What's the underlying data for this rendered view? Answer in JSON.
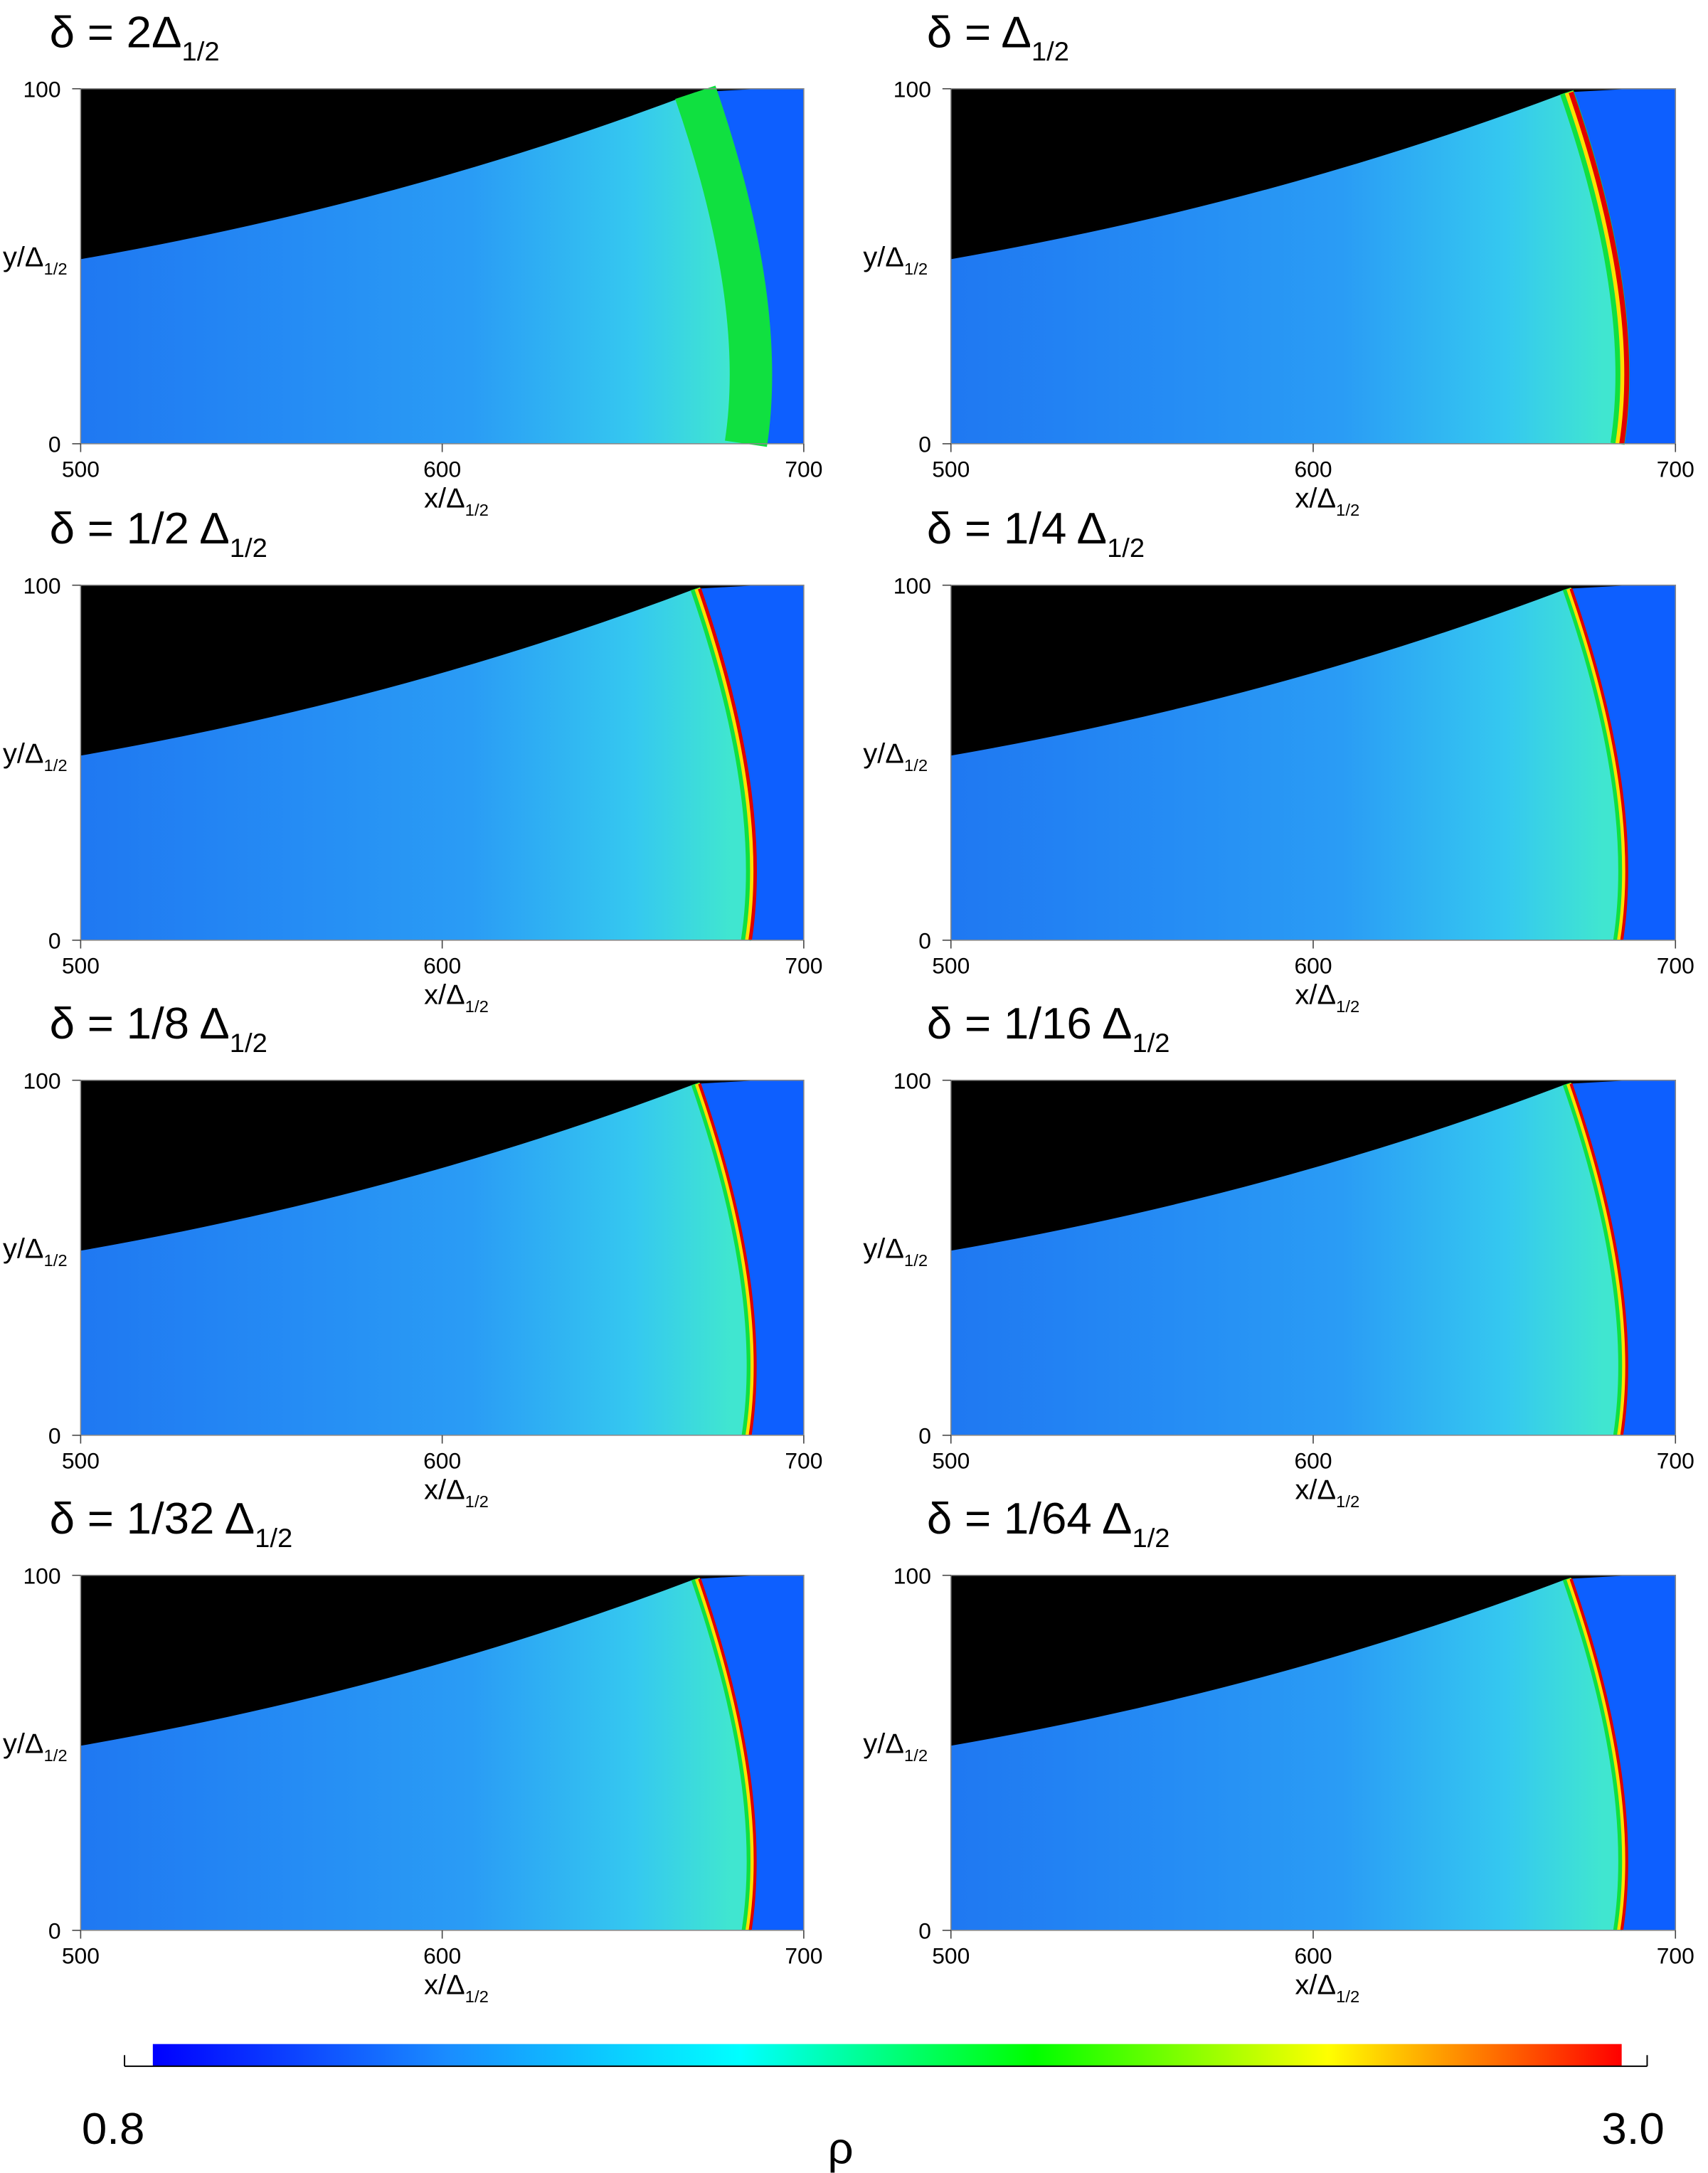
{
  "chart_data": [
    {
      "type": "heatmap",
      "title": "δ = 2Δ",
      "title_subscript": "1/2",
      "xlabel": "x/Δ",
      "xlabel_subscript": "1/2",
      "ylabel": "y/Δ",
      "ylabel_subscript": "1/2",
      "xlim": [
        500,
        700
      ],
      "ylim": [
        0,
        100
      ],
      "xticks": [
        500,
        600,
        700
      ],
      "yticks": [
        0,
        100
      ]
    },
    {
      "type": "heatmap",
      "title": "δ = Δ",
      "title_subscript": "1/2",
      "xlabel": "x/Δ",
      "xlabel_subscript": "1/2",
      "ylabel": "y/Δ",
      "ylabel_subscript": "1/2",
      "xlim": [
        500,
        700
      ],
      "ylim": [
        0,
        100
      ],
      "xticks": [
        500,
        600,
        700
      ],
      "yticks": [
        0,
        100
      ]
    },
    {
      "type": "heatmap",
      "title": "δ = 1/2 Δ",
      "title_subscript": "1/2",
      "xlabel": "x/Δ",
      "xlabel_subscript": "1/2",
      "ylabel": "y/Δ",
      "ylabel_subscript": "1/2",
      "xlim": [
        500,
        700
      ],
      "ylim": [
        0,
        100
      ],
      "xticks": [
        500,
        600,
        700
      ],
      "yticks": [
        0,
        100
      ]
    },
    {
      "type": "heatmap",
      "title": "δ = 1/4 Δ",
      "title_subscript": "1/2",
      "xlabel": "x/Δ",
      "xlabel_subscript": "1/2",
      "ylabel": "y/Δ",
      "ylabel_subscript": "1/2",
      "xlim": [
        500,
        700
      ],
      "ylim": [
        0,
        100
      ],
      "xticks": [
        500,
        600,
        700
      ],
      "yticks": [
        0,
        100
      ]
    },
    {
      "type": "heatmap",
      "title": "δ = 1/8 Δ",
      "title_subscript": "1/2",
      "xlabel": "x/Δ",
      "xlabel_subscript": "1/2",
      "ylabel": "y/Δ",
      "ylabel_subscript": "1/2",
      "xlim": [
        500,
        700
      ],
      "ylim": [
        0,
        100
      ],
      "xticks": [
        500,
        600,
        700
      ],
      "yticks": [
        0,
        100
      ]
    },
    {
      "type": "heatmap",
      "title": "δ = 1/16 Δ",
      "title_subscript": "1/2",
      "xlabel": "x/Δ",
      "xlabel_subscript": "1/2",
      "ylabel": "y/Δ",
      "ylabel_subscript": "1/2",
      "xlim": [
        500,
        700
      ],
      "ylim": [
        0,
        100
      ],
      "xticks": [
        500,
        600,
        700
      ],
      "yticks": [
        0,
        100
      ]
    },
    {
      "type": "heatmap",
      "title": "δ = 1/32 Δ",
      "title_subscript": "1/2",
      "xlabel": "x/Δ",
      "xlabel_subscript": "1/2",
      "ylabel": "y/Δ",
      "ylabel_subscript": "1/2",
      "xlim": [
        500,
        700
      ],
      "ylim": [
        0,
        100
      ],
      "xticks": [
        500,
        600,
        700
      ],
      "yticks": [
        0,
        100
      ]
    },
    {
      "type": "heatmap",
      "title": "δ = 1/64 Δ",
      "title_subscript": "1/2",
      "xlabel": "x/Δ",
      "xlabel_subscript": "1/2",
      "ylabel": "y/Δ",
      "ylabel_subscript": "1/2",
      "xlim": [
        500,
        700
      ],
      "ylim": [
        0,
        100
      ],
      "xticks": [
        500,
        600,
        700
      ],
      "yticks": [
        0,
        100
      ]
    },
    {
      "type": "colorbar",
      "label": "ρ",
      "lim": [
        0.8,
        3
      ],
      "ticks": [
        0.8,
        {
          "value": 3,
          "label": "3.0"
        }
      ],
      "colors": [
        "#0000ff",
        "#1a8cff",
        "#00ffff",
        "#00ff00",
        "#ffff00",
        "#ff0000"
      ]
    }
  ]
}
